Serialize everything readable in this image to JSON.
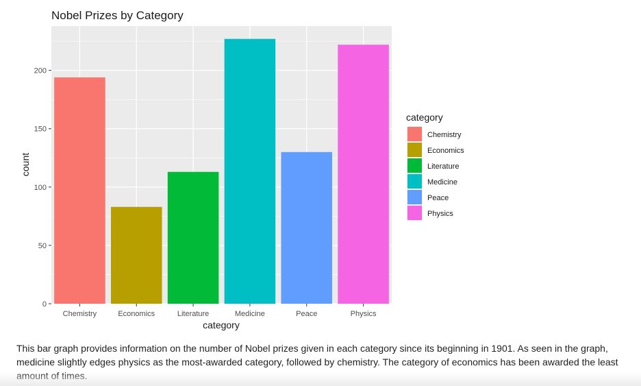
{
  "chart_data": {
    "type": "bar",
    "title": "Nobel Prizes by Category",
    "xlabel": "category",
    "ylabel": "count",
    "categories": [
      "Chemistry",
      "Economics",
      "Literature",
      "Medicine",
      "Peace",
      "Physics"
    ],
    "values": [
      194,
      83,
      113,
      227,
      130,
      222
    ],
    "colors": [
      "#F8766D",
      "#B79F00",
      "#00BA38",
      "#00BFC4",
      "#619CFF",
      "#F564E3"
    ],
    "ylim": [
      0,
      238
    ],
    "yticks": [
      0,
      50,
      100,
      150,
      200
    ],
    "grid": true,
    "panel_background": "#EBEBEB",
    "legend": {
      "title": "category",
      "placement": "right",
      "entries": [
        "Chemistry",
        "Economics",
        "Literature",
        "Medicine",
        "Peace",
        "Physics"
      ]
    }
  },
  "caption": "This bar graph provides information on the number of Nobel prizes given in each category since its beginning in 1901. As seen in the graph, medicine slightly edges physics as the most-awarded category, followed by chemistry. The category of economics has been awarded the least amount of times."
}
